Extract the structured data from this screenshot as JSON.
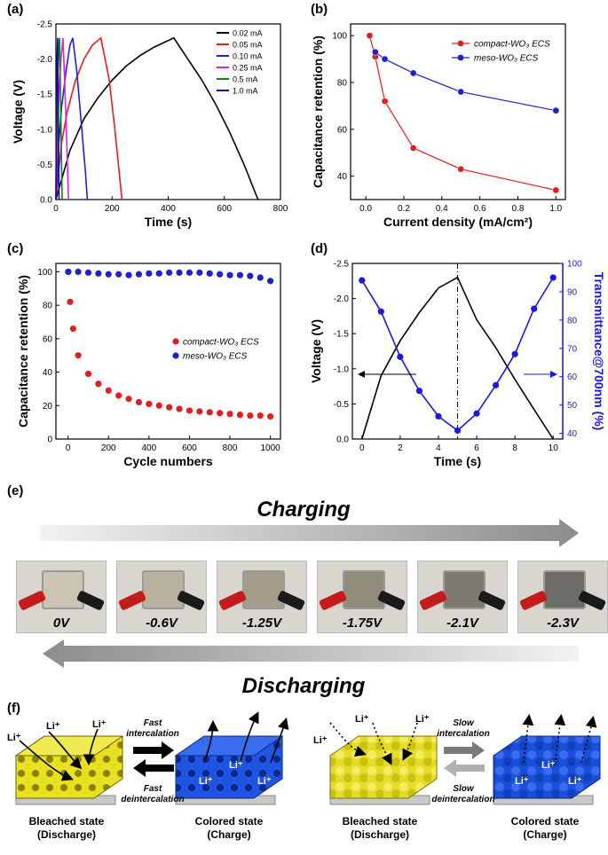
{
  "panels": {
    "a": "(a)",
    "b": "(b)",
    "c": "(c)",
    "d": "(d)",
    "e": "(e)",
    "f": "(f)"
  },
  "chart_data": [
    {
      "id": "a",
      "type": "line",
      "xlabel": "Time (s)",
      "ylabel": "Voltage (V)",
      "xlim": [
        0,
        800
      ],
      "ylim": [
        0,
        -2.5
      ],
      "xticks": [
        0,
        200,
        400,
        600,
        800
      ],
      "yticks": [
        0.0,
        -0.5,
        -1.0,
        -1.5,
        -2.0,
        -2.5
      ],
      "ytick_labels": [
        "0.0",
        "-0.5",
        "-1.0",
        "-1.5",
        "-2.0",
        "-2.5"
      ],
      "legend_position": "top-right",
      "series": [
        {
          "name": "0.02 mA",
          "color": "#000000",
          "x": [
            0,
            50,
            100,
            150,
            200,
            250,
            300,
            350,
            420,
            470,
            520,
            570,
            620,
            670,
            720
          ],
          "y": [
            0,
            -0.7,
            -1.15,
            -1.45,
            -1.7,
            -1.9,
            -2.05,
            -2.17,
            -2.3,
            -2.0,
            -1.7,
            -1.35,
            -0.95,
            -0.5,
            0
          ]
        },
        {
          "name": "0.05 mA",
          "color": "#e02020",
          "x": [
            0,
            20,
            40,
            70,
            100,
            130,
            160,
            190,
            210,
            225,
            235
          ],
          "y": [
            0,
            -0.8,
            -1.25,
            -1.7,
            -2.0,
            -2.2,
            -2.3,
            -1.7,
            -1.0,
            -0.4,
            0
          ]
        },
        {
          "name": "0.10 mA",
          "color": "#2020d0",
          "x": [
            0,
            10,
            20,
            35,
            50,
            60,
            75,
            90,
            105,
            112
          ],
          "y": [
            0,
            -0.8,
            -1.3,
            -1.8,
            -2.2,
            -2.3,
            -1.8,
            -1.1,
            -0.4,
            0
          ]
        },
        {
          "name": "0.25 mA",
          "color": "#e020e0",
          "x": [
            0,
            5,
            10,
            18,
            25,
            30,
            37,
            45
          ],
          "y": [
            0,
            -0.9,
            -1.5,
            -2.0,
            -2.3,
            -1.8,
            -1.0,
            0
          ]
        },
        {
          "name": "0.5 mA",
          "color": "#108010",
          "x": [
            0,
            3,
            6,
            10,
            13,
            17,
            22
          ],
          "y": [
            0,
            -1.0,
            -1.7,
            -2.2,
            -2.3,
            -1.3,
            0
          ]
        },
        {
          "name": "1.0 mA",
          "color": "#1010a0",
          "x": [
            0,
            2,
            4,
            6,
            8,
            11
          ],
          "y": [
            0,
            -1.2,
            -2.0,
            -2.3,
            -1.5,
            0
          ]
        }
      ]
    },
    {
      "id": "b",
      "type": "line",
      "xlabel": "Current density (mA/cm²)",
      "ylabel": "Capacitance retention (%)",
      "xlim": [
        -0.08,
        1.05
      ],
      "ylim": [
        30,
        105
      ],
      "xticks": [
        0.0,
        0.2,
        0.4,
        0.6,
        0.8,
        1.0
      ],
      "xtick_labels": [
        "0.0",
        "0.2",
        "0.4",
        "0.6",
        "0.8",
        "1.0"
      ],
      "yticks": [
        40,
        60,
        80,
        100
      ],
      "legend_position": "top-right",
      "series": [
        {
          "name": "compact-WO₃ ECS",
          "color": "#e02020",
          "x": [
            0.02,
            0.05,
            0.1,
            0.25,
            0.5,
            1.0
          ],
          "y": [
            100,
            91,
            72,
            52,
            43,
            34
          ]
        },
        {
          "name": "meso-WO₃ ECS",
          "color": "#2020d0",
          "x": [
            0.05,
            0.1,
            0.25,
            0.5,
            1.0
          ],
          "y": [
            93,
            90,
            84,
            76,
            68
          ]
        }
      ]
    },
    {
      "id": "c",
      "type": "scatter",
      "xlabel": "Cycle numbers",
      "ylabel": "Capacitance retention (%)",
      "xlim": [
        -60,
        1050
      ],
      "ylim": [
        0,
        105
      ],
      "xticks": [
        0,
        200,
        400,
        600,
        800,
        1000
      ],
      "yticks": [
        0,
        20,
        40,
        60,
        80,
        100
      ],
      "legend_position": "center-right",
      "series": [
        {
          "name": "compact-WO₃ ECS",
          "color": "#e02020",
          "x": [
            1,
            10,
            25,
            50,
            100,
            150,
            200,
            250,
            300,
            350,
            400,
            450,
            500,
            550,
            600,
            650,
            700,
            750,
            800,
            850,
            900,
            950,
            1000
          ],
          "y": [
            100,
            82,
            66,
            50,
            39,
            33,
            29,
            26,
            24,
            22,
            21,
            20,
            19,
            18,
            17,
            16.5,
            16,
            15.5,
            15,
            14.5,
            14,
            14,
            13.5
          ]
        },
        {
          "name": "meso-WO₃ ECS",
          "color": "#2020d0",
          "x": [
            1,
            50,
            100,
            150,
            200,
            250,
            300,
            350,
            400,
            450,
            500,
            550,
            600,
            650,
            700,
            750,
            800,
            850,
            900,
            950,
            1000
          ],
          "y": [
            100,
            100,
            99.5,
            99,
            98.5,
            98.5,
            98,
            98.5,
            99,
            99,
            99.5,
            99.5,
            99.5,
            99.5,
            99,
            98.5,
            98,
            98,
            97.5,
            96.5,
            94.5
          ]
        }
      ]
    },
    {
      "id": "d",
      "type": "line",
      "xlabel": "Time (s)",
      "ylabel": "Voltage (V)",
      "y2label": "Transmittance@700nm (%)",
      "xlim": [
        -0.5,
        10.5
      ],
      "ylim": [
        0,
        -2.5
      ],
      "y2lim": [
        38,
        100
      ],
      "xticks": [
        0,
        2,
        4,
        6,
        8,
        10
      ],
      "yticks": [
        0.0,
        -0.5,
        -1.0,
        -1.5,
        -2.0,
        -2.5
      ],
      "ytick_labels": [
        "0.0",
        "-0.5",
        "-1.0",
        "-1.5",
        "-2.0",
        "-2.5"
      ],
      "y2ticks": [
        40,
        50,
        60,
        70,
        80,
        90,
        100
      ],
      "series": [
        {
          "name": "Voltage",
          "color": "#000000",
          "axis": "left",
          "x": [
            0,
            1,
            2,
            3,
            4,
            5,
            6,
            7,
            8,
            9,
            10
          ],
          "y": [
            0,
            -0.9,
            -1.4,
            -1.8,
            -2.15,
            -2.3,
            -1.7,
            -1.3,
            -0.85,
            -0.42,
            0
          ]
        },
        {
          "name": "Transmittance",
          "color": "#1a1adc",
          "axis": "right",
          "x": [
            0,
            1,
            2,
            3,
            4,
            5,
            6,
            7,
            8,
            9,
            10
          ],
          "y": [
            94,
            83,
            67,
            55,
            46,
            41,
            47,
            57,
            68,
            84,
            95
          ]
        }
      ]
    }
  ],
  "panel_e": {
    "charging_label": "Charging",
    "discharging_label": "Discharging",
    "voltages": [
      "0V",
      "-0.6V",
      "-1.25V",
      "-1.75V",
      "-2.1V",
      "-2.3V"
    ],
    "tints": [
      "#cbc4b4",
      "#b8b19f",
      "#a39c8a",
      "#918b7b",
      "#7e7a6f",
      "#6e6c66"
    ]
  },
  "panel_f": {
    "li": "Li⁺",
    "left_arrow_top": "Fast intercalation",
    "left_arrow_top_l1": "Fast",
    "left_arrow_top_l2": "intercalation",
    "left_arrow_bottom_l1": "Fast",
    "left_arrow_bottom_l2": "deintercalation",
    "right_arrow_top_l1": "Slow",
    "right_arrow_top_l2": "intercalation",
    "right_arrow_bottom_l1": "Slow",
    "right_arrow_bottom_l2": "deintercalation",
    "bleached_l1": "Bleached state",
    "bleached_l2": "(Discharge)",
    "colored_l1": "Colored state",
    "colored_l2": "(Charge)"
  }
}
